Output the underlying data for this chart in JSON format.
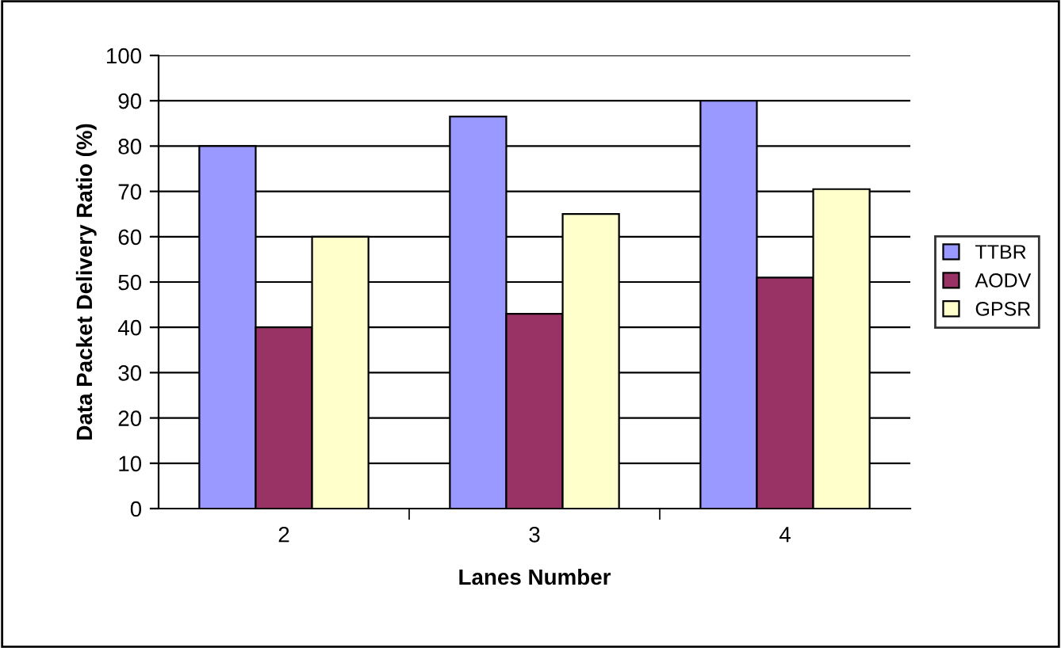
{
  "chart_data": {
    "type": "bar",
    "xlabel": "Lanes Number",
    "ylabel": "Data Packet Delivery Ratio (%)",
    "categories": [
      "2",
      "3",
      "4"
    ],
    "series": [
      {
        "name": "TTBR",
        "color": "#9999ff",
        "values": [
          80,
          86.5,
          90
        ]
      },
      {
        "name": "AODV",
        "color": "#993366",
        "values": [
          40,
          43,
          51
        ]
      },
      {
        "name": "GPSR",
        "color": "#ffffcc",
        "values": [
          60,
          65,
          70.5
        ]
      }
    ],
    "ylim": [
      0,
      100
    ],
    "yticks": [
      0,
      10,
      20,
      30,
      40,
      50,
      60,
      70,
      80,
      90,
      100
    ],
    "grid": "y",
    "legend": "right"
  }
}
